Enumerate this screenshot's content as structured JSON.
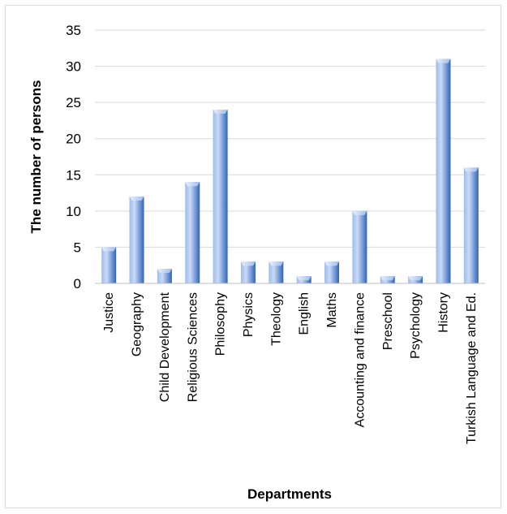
{
  "chart_data": {
    "type": "bar",
    "categories": [
      "Justice",
      "Geography",
      "Child Development",
      "Religious Sciences",
      "Philosophy",
      "Physics",
      "Theology",
      "English",
      "Maths",
      "Accounting and finance",
      "Preschool",
      "Psychology",
      "History",
      "Turkish Language and Ed."
    ],
    "values": [
      5,
      12,
      2,
      14,
      24,
      3,
      3,
      1,
      3,
      10,
      1,
      1,
      31,
      16
    ],
    "title": "",
    "xlabel": "Departments",
    "ylabel": "The number of persons",
    "ylim": [
      0,
      35
    ],
    "yticks": [
      0,
      5,
      10,
      15,
      20,
      25,
      30,
      35
    ],
    "grid": true,
    "legend": "none",
    "colors": {
      "bar_light": "#c9daf8",
      "bar_dark": "#3a6fc4",
      "grid": "#d9d9d9",
      "axis": "#bfbfbf"
    }
  }
}
